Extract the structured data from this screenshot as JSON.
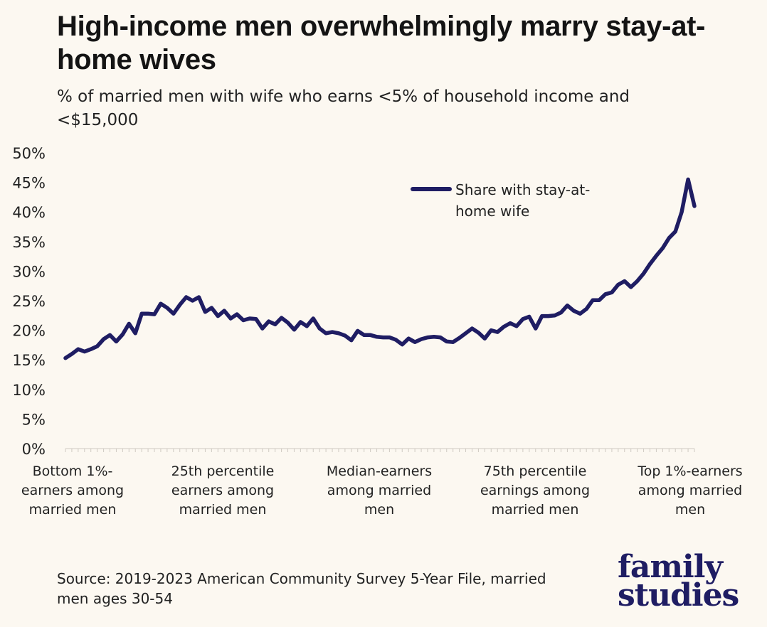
{
  "header": {
    "title": "High-income men overwhelmingly marry stay-at-home wives",
    "subtitle": "% of married men with wife who earns <5% of household income and <$15,000"
  },
  "footer": {
    "source": "Source: 2019-2023 American Community Survey 5-Year File, married men ages 30-54"
  },
  "logo": {
    "line1": "family",
    "line2": "studies"
  },
  "colors": {
    "line": "#1f1d63",
    "background": "#fcf8f1",
    "text": "#1a1a1a"
  },
  "chart_data": {
    "type": "line",
    "title": "High-income men overwhelmingly marry stay-at-home wives",
    "subtitle": "% of married men with wife who earns <5% of household income and <$15,000",
    "ylim": [
      0,
      50
    ],
    "yticks": [
      "0%",
      "5%",
      "10%",
      "15%",
      "20%",
      "25%",
      "30%",
      "35%",
      "40%",
      "45%",
      "50%"
    ],
    "ytick_values": [
      0,
      5,
      10,
      15,
      20,
      25,
      30,
      35,
      40,
      45,
      50
    ],
    "xlim": [
      1,
      100
    ],
    "x_category_labels": [
      {
        "x": 1,
        "lines": [
          "Bottom 1%-",
          "earners among",
          "married men"
        ]
      },
      {
        "x": 25,
        "lines": [
          "25th percentile",
          "earners among",
          "married men"
        ]
      },
      {
        "x": 50,
        "lines": [
          "Median-earners",
          "among married",
          "men"
        ]
      },
      {
        "x": 75,
        "lines": [
          "75th percentile",
          "earnings among",
          "married men"
        ]
      },
      {
        "x": 100,
        "lines": [
          "Top 1%-earners",
          "among married",
          "men"
        ]
      }
    ],
    "grid": false,
    "legend": {
      "position": "top-right",
      "lines": [
        "Share with stay-at-",
        "home wife"
      ]
    },
    "series": [
      {
        "name": "Share with stay-at-home wife",
        "x": [
          1,
          2,
          3,
          4,
          5,
          6,
          7,
          8,
          9,
          10,
          11,
          12,
          13,
          14,
          15,
          16,
          17,
          18,
          19,
          20,
          21,
          22,
          23,
          24,
          25,
          26,
          27,
          28,
          29,
          30,
          31,
          32,
          33,
          34,
          35,
          36,
          37,
          38,
          39,
          40,
          41,
          42,
          43,
          44,
          45,
          46,
          47,
          48,
          49,
          50,
          51,
          52,
          53,
          54,
          55,
          56,
          57,
          58,
          59,
          60,
          61,
          62,
          63,
          64,
          65,
          66,
          67,
          68,
          69,
          70,
          71,
          72,
          73,
          74,
          75,
          76,
          77,
          78,
          79,
          80,
          81,
          82,
          83,
          84,
          85,
          86,
          87,
          88,
          89,
          90,
          91,
          92,
          93,
          94,
          95,
          96,
          97,
          98,
          99,
          100
        ],
        "values": [
          15.3,
          16.0,
          16.8,
          16.4,
          16.8,
          17.3,
          18.5,
          19.2,
          18.1,
          19.3,
          21.1,
          19.5,
          22.8,
          22.8,
          22.7,
          24.5,
          23.8,
          22.8,
          24.3,
          25.6,
          25.0,
          25.6,
          23.1,
          23.8,
          22.4,
          23.3,
          22.0,
          22.7,
          21.7,
          22.0,
          21.9,
          20.3,
          21.5,
          21.0,
          22.1,
          21.3,
          20.1,
          21.4,
          20.7,
          22.0,
          20.3,
          19.5,
          19.7,
          19.5,
          19.1,
          18.3,
          19.9,
          19.2,
          19.2,
          18.9,
          18.8,
          18.8,
          18.4,
          17.6,
          18.6,
          18.0,
          18.5,
          18.8,
          18.9,
          18.8,
          18.1,
          18.0,
          18.7,
          19.5,
          20.3,
          19.6,
          18.6,
          20.0,
          19.7,
          20.6,
          21.2,
          20.7,
          21.9,
          22.3,
          20.3,
          22.4,
          22.4,
          22.5,
          23.0,
          24.2,
          23.3,
          22.8,
          23.6,
          25.1,
          25.1,
          26.1,
          26.4,
          27.7,
          28.3,
          27.3,
          28.3,
          29.6,
          31.2,
          32.6,
          33.9,
          35.6,
          36.7,
          40.0,
          45.5,
          41.0
        ]
      }
    ]
  }
}
